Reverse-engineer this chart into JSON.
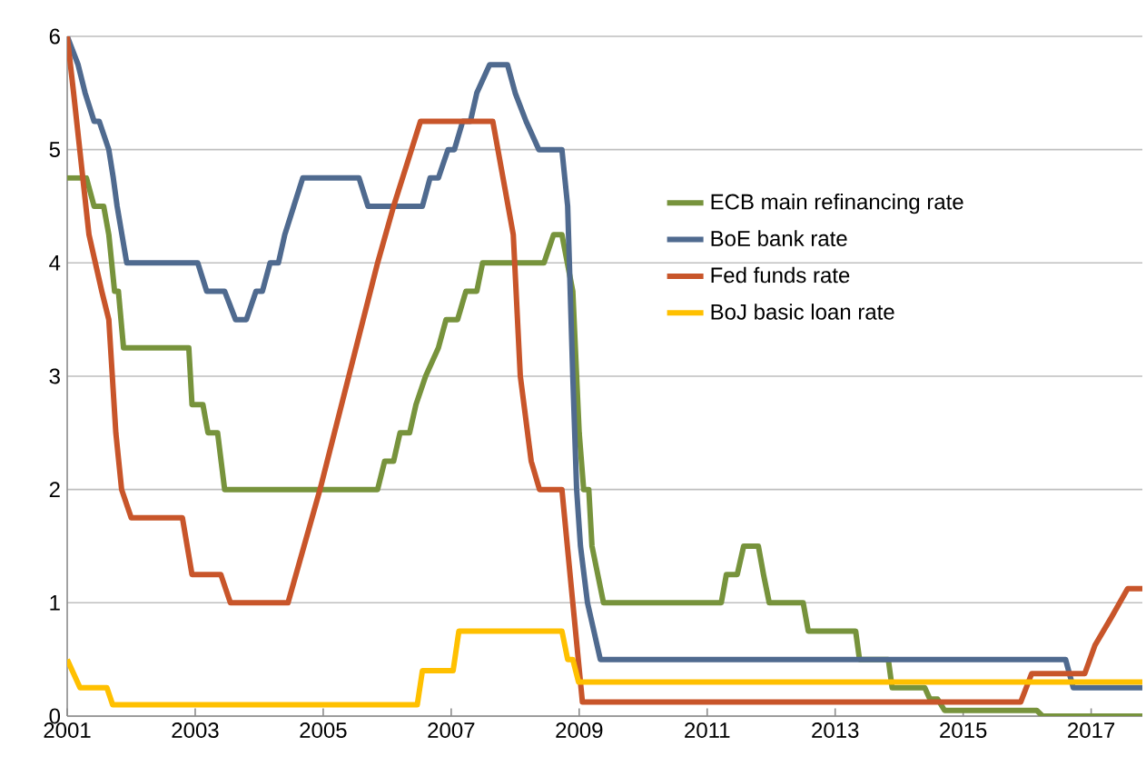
{
  "chart_data": {
    "type": "line",
    "xlim": [
      2001,
      2017.8
    ],
    "ylim": [
      0,
      6
    ],
    "xticks": [
      2001,
      2003,
      2005,
      2007,
      2009,
      2011,
      2013,
      2015,
      2017
    ],
    "yticks": [
      0,
      1,
      2,
      3,
      4,
      5,
      6
    ],
    "grid": "y",
    "legend": "right",
    "marker": "none",
    "line_style": "solid",
    "series": [
      {
        "name": "ECB main refinancing rate",
        "color": "#77933c",
        "x": [
          2001.0,
          2001.3,
          2001.42,
          2001.57,
          2001.65,
          2001.74,
          2001.8,
          2001.88,
          2002.9,
          2002.95,
          2003.12,
          2003.2,
          2003.35,
          2003.46,
          2005.85,
          2005.96,
          2006.1,
          2006.2,
          2006.35,
          2006.45,
          2006.6,
          2006.8,
          2006.92,
          2007.1,
          2007.23,
          2007.4,
          2007.49,
          2008.45,
          2008.6,
          2008.73,
          2008.9,
          2009.0,
          2009.07,
          2009.15,
          2009.2,
          2009.38,
          2011.22,
          2011.3,
          2011.47,
          2011.57,
          2011.8,
          2011.88,
          2011.97,
          2012.5,
          2012.58,
          2013.32,
          2013.38,
          2013.83,
          2013.89,
          2014.4,
          2014.48,
          2014.6,
          2014.71,
          2016.15,
          2016.24,
          2017.8
        ],
        "values": [
          4.75,
          4.75,
          4.5,
          4.5,
          4.25,
          3.75,
          3.75,
          3.25,
          3.25,
          2.75,
          2.75,
          2.5,
          2.5,
          2.0,
          2.0,
          2.25,
          2.25,
          2.5,
          2.5,
          2.75,
          3.0,
          3.25,
          3.5,
          3.5,
          3.75,
          3.75,
          4.0,
          4.0,
          4.25,
          4.25,
          3.75,
          2.5,
          2.0,
          2.0,
          1.5,
          1.0,
          1.0,
          1.25,
          1.25,
          1.5,
          1.5,
          1.25,
          1.0,
          1.0,
          0.75,
          0.75,
          0.5,
          0.5,
          0.25,
          0.25,
          0.15,
          0.15,
          0.05,
          0.05,
          0.0,
          0.0
        ]
      },
      {
        "name": "BoE bank rate",
        "color": "#4f6a8f",
        "x": [
          2001.0,
          2001.17,
          2001.28,
          2001.42,
          2001.5,
          2001.65,
          2001.72,
          2001.78,
          2001.93,
          2003.04,
          2003.18,
          2003.46,
          2003.63,
          2003.8,
          2003.95,
          2004.05,
          2004.17,
          2004.3,
          2004.4,
          2004.54,
          2004.68,
          2005.56,
          2005.7,
          2006.55,
          2006.67,
          2006.8,
          2006.95,
          2007.05,
          2007.18,
          2007.3,
          2007.4,
          2007.6,
          2007.88,
          2008.0,
          2008.17,
          2008.37,
          2008.73,
          2008.82,
          2008.9,
          2008.96,
          2009.02,
          2009.13,
          2009.33,
          2016.6,
          2016.72,
          2017.8
        ],
        "values": [
          6.0,
          5.75,
          5.5,
          5.25,
          5.25,
          5.0,
          4.75,
          4.5,
          4.0,
          4.0,
          3.75,
          3.75,
          3.5,
          3.5,
          3.75,
          3.75,
          4.0,
          4.0,
          4.25,
          4.5,
          4.75,
          4.75,
          4.5,
          4.5,
          4.75,
          4.75,
          5.0,
          5.0,
          5.25,
          5.25,
          5.5,
          5.75,
          5.75,
          5.5,
          5.25,
          5.0,
          5.0,
          4.5,
          3.0,
          2.0,
          1.5,
          1.0,
          0.5,
          0.5,
          0.25,
          0.25
        ]
      },
      {
        "name": "Fed funds rate",
        "color": "#c8552a",
        "x": [
          2001.0,
          2001.1,
          2001.34,
          2001.54,
          2001.65,
          2001.76,
          2001.85,
          2002.0,
          2002.8,
          2002.95,
          2003.4,
          2003.55,
          2004.45,
          2004.95,
          2005.4,
          2005.85,
          2006.1,
          2006.38,
          2006.52,
          2007.65,
          2007.97,
          2008.08,
          2008.25,
          2008.38,
          2008.73,
          2008.9,
          2009.05,
          2015.9,
          2016.07,
          2016.9,
          2017.06,
          2017.32,
          2017.57,
          2017.8
        ],
        "values": [
          6.0,
          5.5,
          4.25,
          3.75,
          3.5,
          2.5,
          2.0,
          1.75,
          1.75,
          1.25,
          1.25,
          1.0,
          1.0,
          2.0,
          3.0,
          4.0,
          4.5,
          5.0,
          5.25,
          5.25,
          4.25,
          3.0,
          2.25,
          2.0,
          2.0,
          1.0,
          0.125,
          0.125,
          0.375,
          0.375,
          0.625,
          0.875,
          1.125,
          1.125
        ]
      },
      {
        "name": "BoJ basic loan rate",
        "color": "#ffc000",
        "x": [
          2001.0,
          2001.2,
          2001.62,
          2001.71,
          2006.47,
          2006.55,
          2007.03,
          2007.12,
          2008.73,
          2008.82,
          2008.9,
          2008.99,
          2017.8
        ],
        "values": [
          0.5,
          0.25,
          0.25,
          0.1,
          0.1,
          0.4,
          0.4,
          0.75,
          0.75,
          0.5,
          0.5,
          0.3,
          0.3
        ]
      }
    ]
  }
}
